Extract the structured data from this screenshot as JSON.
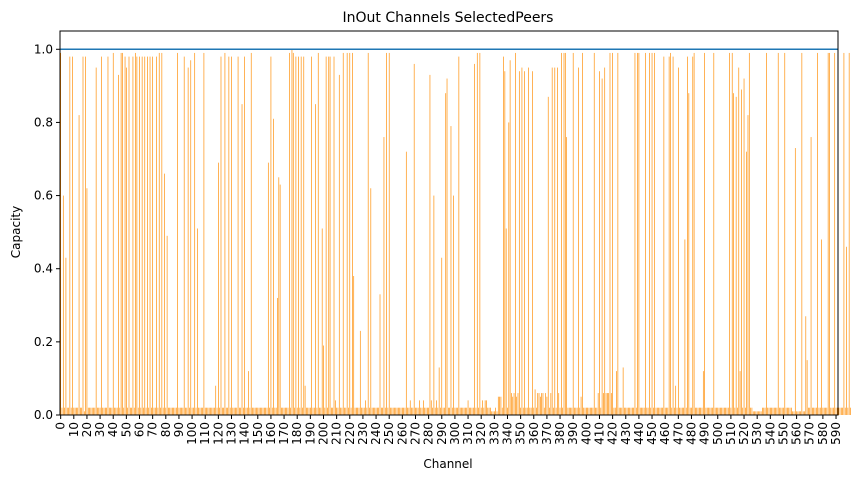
{
  "chart_data": {
    "type": "bar",
    "title": "InOut Channels SelectedPeers",
    "xlabel": "Channel",
    "ylabel": "Capacity",
    "ylim": [
      0,
      1.05
    ],
    "xlim": [
      0,
      592
    ],
    "yticks": [
      "0.0",
      "0.2",
      "0.4",
      "0.6",
      "0.8",
      "1.0"
    ],
    "ytick_values": [
      0,
      0.2,
      0.4,
      0.6,
      0.8,
      1.0
    ],
    "xtick_step": 10,
    "xtick_max": 590,
    "grid": false,
    "reference_line": {
      "y": 1.0,
      "color": "#1f77b4"
    },
    "bar_color": "#ff8c00",
    "series": [
      {
        "values": [
          0.99,
          0.02,
          0.6,
          0.02,
          0.43,
          0.02,
          0.02,
          0.98,
          0.02,
          0.98,
          0.02,
          0.02,
          0.02,
          0.02,
          0.82,
          0.02,
          0.02,
          0.98,
          0.01,
          0.98,
          0.62,
          0.02,
          0.02,
          0.02,
          0.02,
          0.02,
          0.02,
          0.95,
          0.02,
          0.02,
          0.02,
          0.98,
          0.02,
          0.02,
          0.02,
          0.02,
          0.98,
          0.02,
          0.02,
          0.02,
          0.99,
          0.02,
          0.02,
          0.02,
          0.93,
          0.02,
          0.99,
          0.99,
          0.02,
          0.98,
          0.95,
          0.02,
          0.98,
          0.02,
          0.02,
          0.98,
          0.02,
          0.99,
          0.98,
          0.02,
          0.98,
          0.02,
          0.98,
          0.02,
          0.98,
          0.02,
          0.98,
          0.02,
          0.98,
          0.02,
          0.98,
          0.02,
          0.02,
          0.98,
          0.02,
          0.99,
          0.02,
          0.99,
          0.02,
          0.66,
          0.02,
          0.49,
          0.02,
          0.02,
          0.02,
          0.02,
          0.02,
          0.02,
          0.02,
          0.99,
          0.02,
          0.02,
          0.02,
          0.02,
          0.98,
          0.02,
          0.02,
          0.95,
          0.02,
          0.97,
          0.02,
          0.02,
          0.99,
          0.02,
          0.51,
          0.02,
          0.02,
          0.02,
          0.02,
          0.99,
          0.02,
          0.02,
          0.02,
          0.02,
          0.02,
          0.02,
          0.02,
          0.02,
          0.08,
          0.02,
          0.69,
          0.02,
          0.98,
          0.02,
          0.02,
          0.99,
          0.02,
          0.02,
          0.98,
          0.02,
          0.98,
          0.02,
          0.02,
          0.02,
          0.02,
          0.98,
          0.02,
          0.02,
          0.85,
          0.02,
          0.98,
          0.02,
          0.02,
          0.12,
          0.02,
          0.99,
          0.02,
          0.02,
          0.02,
          0.02,
          0.02,
          0.02,
          0.02,
          0.02,
          0.02,
          0.02,
          0.02,
          0.02,
          0.69,
          0.02,
          0.98,
          0.02,
          0.81,
          0.02,
          0.02,
          0.32,
          0.65,
          0.63,
          0.02,
          0.02,
          0.02,
          0.02,
          0.02,
          0.02,
          0.99,
          0.02,
          1.0,
          0.99,
          0.02,
          0.98,
          0.02,
          0.98,
          0.02,
          0.98,
          0.02,
          0.98,
          0.08,
          0.02,
          0.02,
          0.02,
          0.02,
          0.98,
          0.02,
          0.02,
          0.85,
          0.02,
          0.99,
          0.02,
          0.02,
          0.51,
          0.19,
          0.02,
          0.98,
          0.02,
          0.98,
          0.98,
          0.02,
          0.02,
          0.98,
          0.04,
          0.02,
          0.02,
          0.93,
          0.02,
          0.02,
          0.99,
          0.02,
          0.02,
          0.99,
          0.02,
          0.99,
          0.02,
          0.99,
          0.38,
          0.02,
          0.02,
          0.02,
          0.02,
          0.23,
          0.02,
          0.02,
          0.02,
          0.04,
          0.02,
          0.99,
          0.02,
          0.62,
          0.02,
          0.02,
          0.02,
          0.02,
          0.02,
          0.02,
          0.33,
          0.02,
          0.02,
          0.76,
          0.02,
          0.99,
          0.02,
          0.99,
          0.02,
          0.02,
          0.02,
          0.02,
          0.02,
          0.02,
          0.02,
          0.02,
          0.02,
          0.02,
          0.02,
          0.02,
          0.72,
          0.02,
          0.02,
          0.04,
          0.02,
          0.02,
          0.96,
          0.02,
          0.02,
          0.02,
          0.04,
          0.02,
          0.02,
          0.04,
          0.02,
          0.02,
          0.02,
          0.02,
          0.93,
          0.04,
          0.02,
          0.6,
          0.02,
          0.04,
          0.02,
          0.13,
          0.02,
          0.43,
          0.02,
          0.02,
          0.88,
          0.92,
          0.02,
          0.02,
          0.79,
          0.02,
          0.6,
          0.02,
          0.02,
          0.02,
          0.98,
          0.02,
          0.02,
          0.02,
          0.02,
          0.02,
          0.02,
          0.04,
          0.02,
          0.02,
          0.02,
          0.02,
          0.96,
          0.02,
          0.99,
          0.02,
          0.99,
          0.02,
          0.04,
          0.02,
          0.04,
          0.04,
          0.02,
          0.02,
          0.02,
          0.01,
          0.01,
          0.01,
          0.02,
          0.01,
          0.05,
          0.05,
          0.05,
          0.02,
          0.98,
          0.94,
          0.51,
          0.02,
          0.8,
          0.97,
          0.06,
          0.05,
          0.06,
          0.99,
          0.05,
          0.06,
          0.94,
          0.02,
          0.95,
          0.02,
          0.94,
          0.02,
          0.02,
          0.95,
          0.02,
          0.02,
          0.94,
          0.02,
          0.07,
          0.02,
          0.06,
          0.06,
          0.05,
          0.06,
          0.06,
          0.02,
          0.06,
          0.05,
          0.87,
          0.02,
          0.06,
          0.95,
          0.02,
          0.95,
          0.02,
          0.95,
          0.06,
          0.02,
          0.99,
          0.02,
          0.99,
          0.99,
          0.76,
          0.02,
          0.02,
          0.02,
          0.02,
          0.99,
          0.02,
          0.02,
          0.02,
          0.95,
          0.02,
          0.05,
          0.99,
          0.02,
          0.02,
          0.02,
          0.02,
          0.02,
          0.02,
          0.02,
          0.02,
          0.99,
          0.02,
          0.02,
          0.06,
          0.94,
          0.02,
          0.92,
          0.06,
          0.95,
          0.06,
          0.06,
          0.06,
          0.99,
          0.06,
          0.99,
          0.02,
          0.02,
          0.12,
          0.99,
          0.02,
          0.02,
          0.02,
          0.13,
          0.02,
          0.02,
          0.02,
          0.02,
          0.02,
          0.02,
          0.02,
          0.02,
          0.99,
          0.02,
          0.99,
          0.99,
          0.02,
          0.02,
          0.02,
          0.02,
          0.99,
          0.02,
          0.02,
          0.99,
          0.02,
          0.99,
          0.02,
          0.99,
          0.02,
          0.02,
          0.02,
          0.02,
          0.02,
          0.02,
          0.98,
          0.02,
          0.02,
          0.02,
          0.98,
          0.99,
          0.02,
          0.98,
          0.02,
          0.08,
          0.02,
          0.95,
          0.02,
          0.02,
          0.02,
          0.02,
          0.48,
          0.02,
          0.98,
          0.88,
          0.02,
          0.02,
          0.98,
          0.99,
          0.02,
          0.02,
          0.02,
          0.02,
          0.02,
          0.02,
          0.12,
          0.99,
          0.02,
          0.02,
          0.02,
          0.02,
          0.02,
          0.02,
          0.99,
          0.02,
          0.02,
          0.02,
          0.02,
          0.02,
          0.02,
          0.02,
          0.02,
          0.02,
          0.02,
          0.02,
          0.99,
          0.02,
          0.99,
          0.88,
          0.02,
          0.87,
          0.02,
          0.95,
          0.12,
          0.89,
          0.02,
          0.92,
          0.02,
          0.72,
          0.82,
          0.99,
          0.02,
          0.02,
          0.01,
          0.01,
          0.01,
          0.01,
          0.01,
          0.01,
          0.01,
          0.02,
          0.02,
          0.02,
          0.99,
          0.02,
          0.02,
          0.02,
          0.02,
          0.02,
          0.02,
          0.02,
          0.02,
          0.99,
          0.02,
          0.02,
          0.02,
          0.02,
          0.99,
          0.02,
          0.02,
          0.02,
          0.02,
          0.02,
          0.01,
          0.01,
          0.73,
          0.01,
          0.01,
          0.01,
          0.01,
          0.99,
          0.01,
          0.01,
          0.27,
          0.15,
          0.02,
          0.02,
          0.76,
          0.02,
          0.02,
          0.02,
          0.02,
          0.99,
          0.02,
          0.02,
          0.48,
          0.02,
          0.02,
          0.02,
          0.02,
          0.99,
          0.99,
          0.02,
          0.02,
          0.02,
          0.99,
          0.02,
          0.02,
          0.02,
          0.02,
          0.02,
          0.02,
          0.99,
          0.02,
          0.46,
          0.02,
          0.99,
          0.02,
          0.02,
          0.02,
          0.02,
          0.01
        ]
      }
    ]
  }
}
